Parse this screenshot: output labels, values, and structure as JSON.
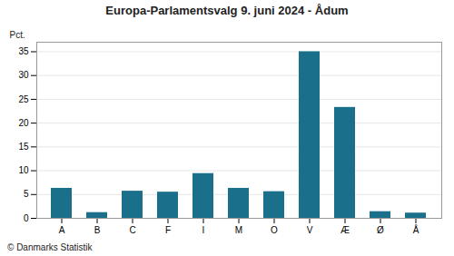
{
  "chart_data": {
    "type": "bar",
    "title": "Europa-Parlamentsvalg 9. juni 2024 - Ådum",
    "categories": [
      "A",
      "B",
      "C",
      "F",
      "I",
      "M",
      "O",
      "V",
      "Æ",
      "Ø",
      "Å"
    ],
    "values": [
      6.3,
      1.2,
      5.7,
      5.5,
      9.4,
      6.3,
      5.6,
      35.0,
      23.3,
      1.4,
      1.1
    ],
    "color": "#1a6f8a",
    "ylabel": "Pct.",
    "ylim": [
      0,
      37
    ],
    "yticks": [
      0,
      5,
      10,
      15,
      20,
      25,
      30,
      35
    ],
    "grid": true,
    "caption": "© Danmarks Statistik"
  }
}
